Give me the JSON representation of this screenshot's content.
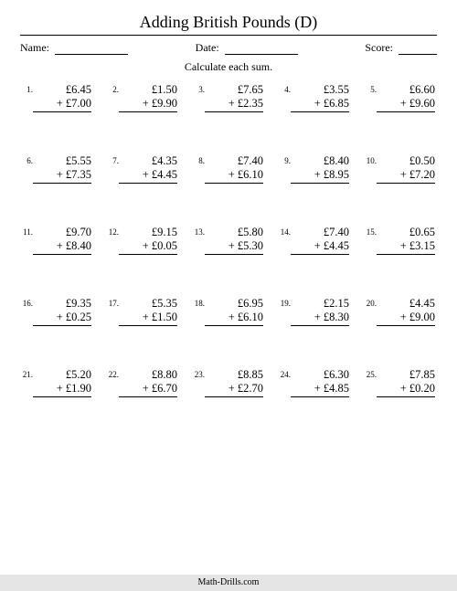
{
  "title": "Adding British Pounds (D)",
  "labels": {
    "name": "Name:",
    "date": "Date:",
    "score": "Score:"
  },
  "instruction": "Calculate each sum.",
  "footer": "Math-Drills.com",
  "style": {
    "page_bg": "#ffffff",
    "text_color": "#000000",
    "footer_bg": "#e5e5e5",
    "font_family": "Times New Roman",
    "title_fontsize": 18,
    "body_fontsize": 12.5,
    "numlabel_fontsize": 9,
    "columns": 5,
    "rows": 5,
    "underline_color": "#000000",
    "line_widths": {
      "name": 80,
      "date": 80,
      "score": 42
    }
  },
  "problems": [
    {
      "n": "1.",
      "a": "£6.45",
      "b": "+ £7.00"
    },
    {
      "n": "2.",
      "a": "£1.50",
      "b": "+ £9.90"
    },
    {
      "n": "3.",
      "a": "£7.65",
      "b": "+ £2.35"
    },
    {
      "n": "4.",
      "a": "£3.55",
      "b": "+ £6.85"
    },
    {
      "n": "5.",
      "a": "£6.60",
      "b": "+ £9.60"
    },
    {
      "n": "6.",
      "a": "£5.55",
      "b": "+ £7.35"
    },
    {
      "n": "7.",
      "a": "£4.35",
      "b": "+ £4.45"
    },
    {
      "n": "8.",
      "a": "£7.40",
      "b": "+ £6.10"
    },
    {
      "n": "9.",
      "a": "£8.40",
      "b": "+ £8.95"
    },
    {
      "n": "10.",
      "a": "£0.50",
      "b": "+ £7.20"
    },
    {
      "n": "11.",
      "a": "£9.70",
      "b": "+ £8.40"
    },
    {
      "n": "12.",
      "a": "£9.15",
      "b": "+ £0.05"
    },
    {
      "n": "13.",
      "a": "£5.80",
      "b": "+ £5.30"
    },
    {
      "n": "14.",
      "a": "£7.40",
      "b": "+ £4.45"
    },
    {
      "n": "15.",
      "a": "£0.65",
      "b": "+ £3.15"
    },
    {
      "n": "16.",
      "a": "£9.35",
      "b": "+ £0.25"
    },
    {
      "n": "17.",
      "a": "£5.35",
      "b": "+ £1.50"
    },
    {
      "n": "18.",
      "a": "£6.95",
      "b": "+ £6.10"
    },
    {
      "n": "19.",
      "a": "£2.15",
      "b": "+ £8.30"
    },
    {
      "n": "20.",
      "a": "£4.45",
      "b": "+ £9.00"
    },
    {
      "n": "21.",
      "a": "£5.20",
      "b": "+ £1.90"
    },
    {
      "n": "22.",
      "a": "£8.80",
      "b": "+ £6.70"
    },
    {
      "n": "23.",
      "a": "£8.85",
      "b": "+ £2.70"
    },
    {
      "n": "24.",
      "a": "£6.30",
      "b": "+ £4.85"
    },
    {
      "n": "25.",
      "a": "£7.85",
      "b": "+ £0.20"
    }
  ]
}
